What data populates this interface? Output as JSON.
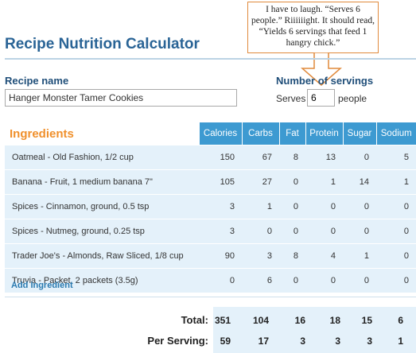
{
  "app": {
    "title": "Recipe Nutrition Calculator"
  },
  "callout": {
    "text": "I have to laugh. “Serves 6 people.” Riiiiiight.  It should read, “Yields 6 servings that feed 1 hangry chick.”"
  },
  "recipe": {
    "label": "Recipe name",
    "value": "Hanger Monster Tamer Cookies"
  },
  "servings": {
    "label": "Number of servings",
    "prefix": "Serves",
    "value": "6",
    "suffix": "people"
  },
  "ingredients": {
    "heading": "Ingredients",
    "columns": [
      "Calories",
      "Carbs",
      "Fat",
      "Protein",
      "Sugar",
      "Sodium"
    ],
    "rows": [
      {
        "name": "Oatmeal - Old Fashion, 1/2 cup",
        "values": [
          "150",
          "67",
          "8",
          "13",
          "0",
          "5"
        ]
      },
      {
        "name": "Banana - Fruit, 1 medium banana 7\"",
        "values": [
          "105",
          "27",
          "0",
          "1",
          "14",
          "1"
        ]
      },
      {
        "name": "Spices - Cinnamon, ground, 0.5 tsp",
        "values": [
          "3",
          "1",
          "0",
          "0",
          "0",
          "0"
        ]
      },
      {
        "name": "Spices - Nutmeg, ground, 0.25 tsp",
        "values": [
          "3",
          "0",
          "0",
          "0",
          "0",
          "0"
        ]
      },
      {
        "name": "Trader Joe's - Almonds, Raw Sliced, 1/8 cup",
        "values": [
          "90",
          "3",
          "8",
          "4",
          "1",
          "0"
        ]
      },
      {
        "name": "Truvia - Packet, 2 packets (3.5g)",
        "values": [
          "0",
          "6",
          "0",
          "0",
          "0",
          "0"
        ]
      }
    ],
    "add_label": "Add Ingredient"
  },
  "totals": {
    "total_label": "Total:",
    "total_values": [
      "351",
      "104",
      "16",
      "18",
      "15",
      "6"
    ],
    "per_serving_label": "Per Serving:",
    "per_serving_values": [
      "59",
      "17",
      "3",
      "3",
      "3",
      "1"
    ]
  },
  "colors": {
    "accent": "#3d9ad1",
    "title": "#2a6496",
    "heading_orange": "#f0902c",
    "row_bg": "#e4f1fa",
    "callout_border": "#e08a3c"
  }
}
